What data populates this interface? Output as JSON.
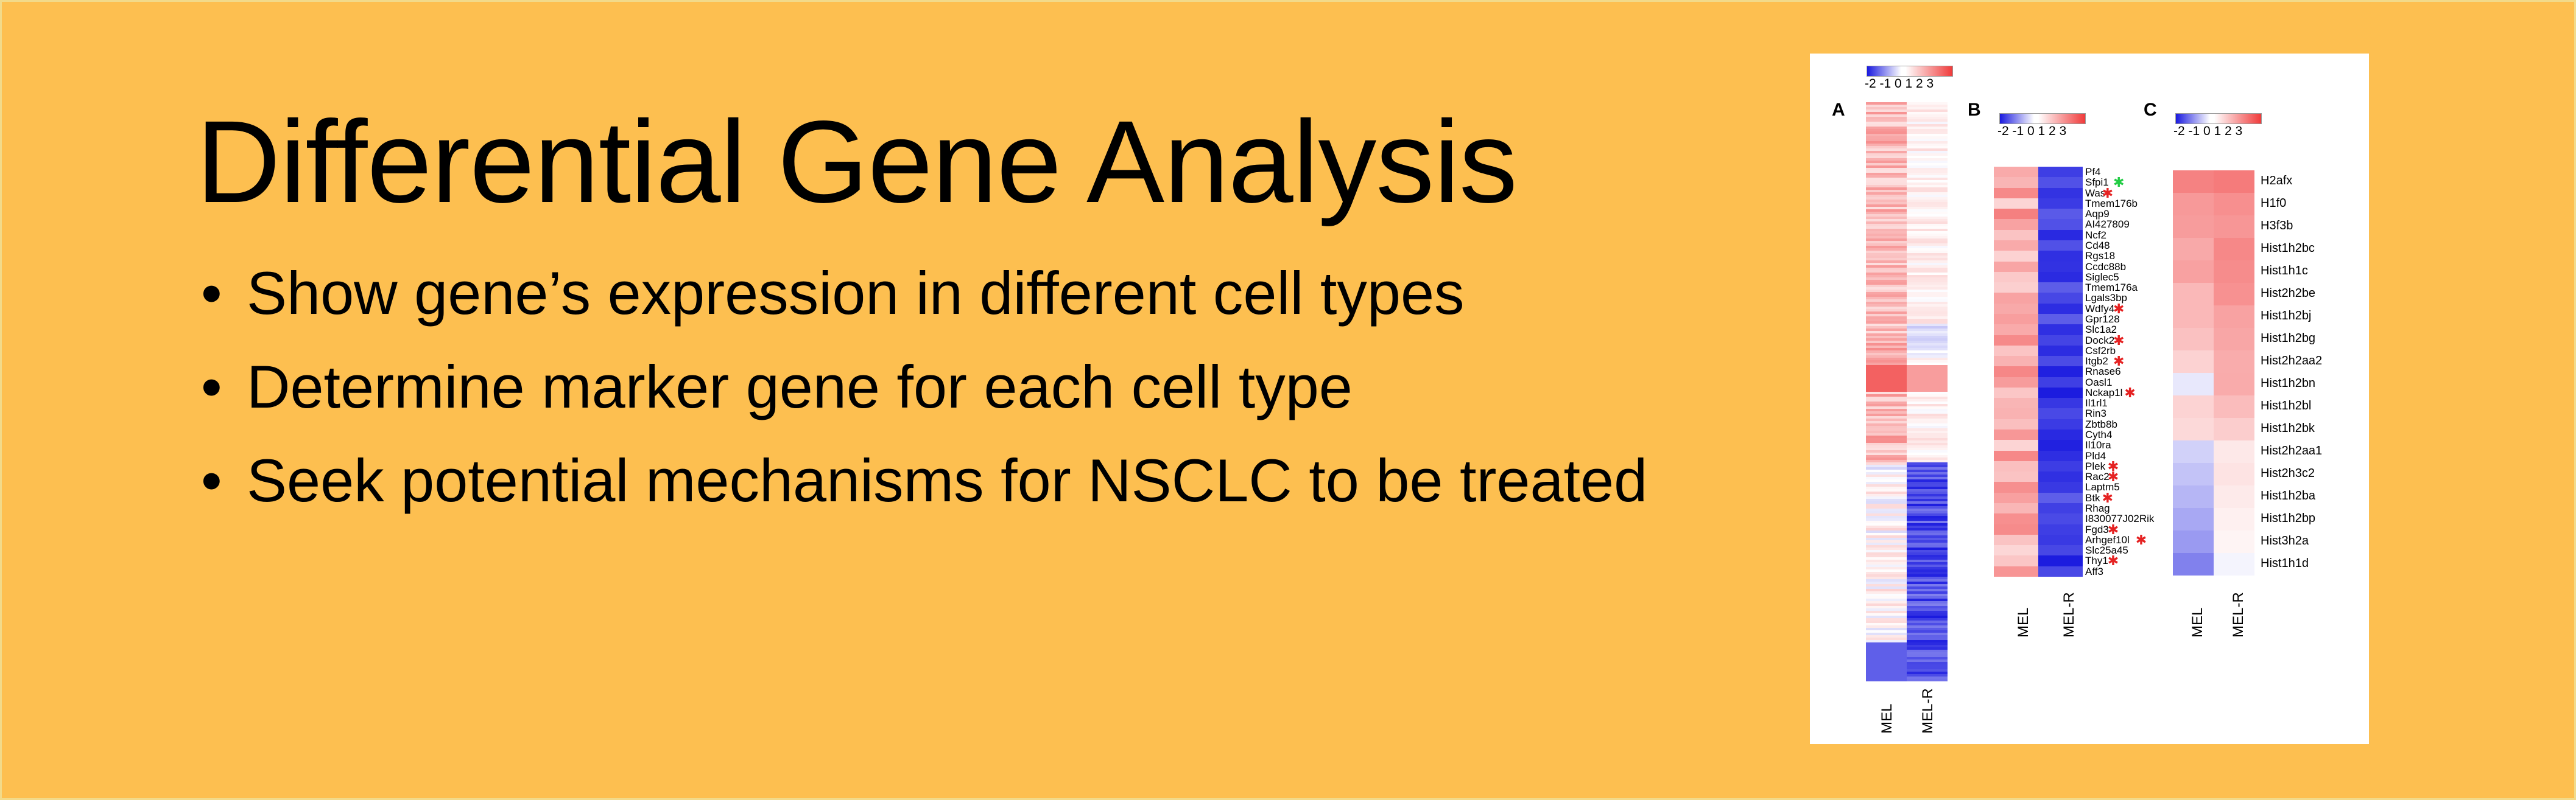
{
  "slide": {
    "title": "Differential Gene Analysis",
    "bullets": [
      "Show gene’s expression in different cell types",
      "Determine marker gene for each cell type",
      "Seek potential mechanisms for NSCLC to be treated"
    ],
    "bullet_glyph": "•",
    "colors": {
      "background": "#FDBF50",
      "text": "#000000",
      "high": "#f03a3a",
      "low": "#1a1adf"
    }
  },
  "figure": {
    "colorbar_ticks": "-2 -1 0 1 2 3",
    "panels": {
      "A": {
        "letter": "A",
        "columns": [
          "MEL",
          "MEL-R"
        ]
      },
      "B": {
        "letter": "B",
        "columns": [
          "MEL",
          "MEL-R"
        ],
        "genes": [
          "Pf4",
          "Sfpi1",
          "Was",
          "Tmem176b",
          "Aqp9",
          "AI427809",
          "Ncf2",
          "Cd48",
          "Rgs18",
          "Ccdc88b",
          "Siglec5",
          "Tmem176a",
          "Lgals3bp",
          "Wdfy4",
          "Gpr128",
          "Slc1a2",
          "Dock2",
          "Csf2rb",
          "Itgb2",
          "Rnase6",
          "Oasl1",
          "Nckap1l",
          "Il1rl1",
          "Rin3",
          "Zbtb8b",
          "Cyth4",
          "Il10ra",
          "Pld4",
          "Plek",
          "Rac2",
          "Laptm5",
          "Btk",
          "Rhag",
          "I830077J02Rik",
          "Fgd3",
          "Arhgef10l",
          "Slc25a45",
          "Thy1",
          "Aff3"
        ],
        "red_star_genes": [
          "Was",
          "Wdfy4",
          "Dock2",
          "Itgb2",
          "Nckap1l",
          "Plek",
          "Rac2",
          "Btk",
          "Fgd3",
          "Arhgef10l",
          "Thy1"
        ],
        "green_star_genes": [
          "Sfpi1"
        ]
      },
      "C": {
        "letter": "C",
        "columns": [
          "MEL",
          "MEL-R"
        ],
        "genes": [
          "H2afx",
          "H1f0",
          "H3f3b",
          "Hist1h2bc",
          "Hist1h1c",
          "Hist2h2be",
          "Hist1h2bj",
          "Hist1h2bg",
          "Hist2h2aa2",
          "Hist1h2bn",
          "Hist1h2bl",
          "Hist1h2bk",
          "Hist2h2aa1",
          "Hist2h3c2",
          "Hist1h2ba",
          "Hist1h2bp",
          "Hist3h2a",
          "Hist1h1d"
        ]
      }
    }
  }
}
